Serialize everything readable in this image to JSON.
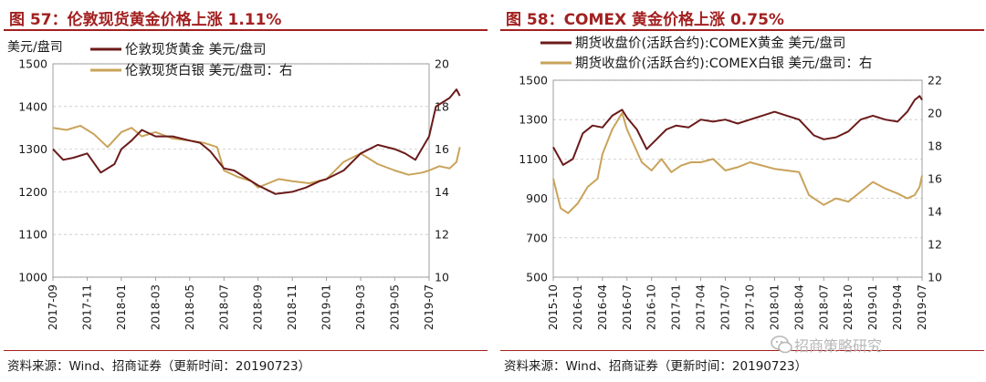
{
  "chart_data": [
    {
      "type": "line",
      "title": "图 57：伦敦现货黄金价格上涨 1.11%",
      "unit_label": "美元/盘司",
      "source": "资料来源：Wind、招商证券（更新时间：20190723）",
      "ylim": [
        1000,
        1500
      ],
      "y_ticks": [
        "1000",
        "1100",
        "1200",
        "1300",
        "1400",
        "1500"
      ],
      "ylim_right": [
        10,
        20
      ],
      "y2_ticks": [
        "10",
        "12",
        "14",
        "16",
        "18",
        "20"
      ],
      "x_ticks": [
        "2017-09",
        "2017-11",
        "2018-01",
        "2018-03",
        "2018-05",
        "2018-07",
        "2018-09",
        "2018-11",
        "2019-01",
        "2019-03",
        "2019-05",
        "2019-07"
      ],
      "grid": true,
      "legend_position": "top",
      "colors": {
        "primary": "#6b1a1a",
        "secondary": "#c9a35a"
      },
      "series": [
        {
          "name": "伦敦现货黄金  美元/盘司",
          "axis": "left",
          "x": [
            0,
            0.3,
            0.6,
            1,
            1.4,
            1.8,
            2,
            2.3,
            2.6,
            3,
            3.5,
            4,
            4.3,
            4.6,
            5,
            5.3,
            5.6,
            6,
            6.5,
            7,
            7.4,
            7.8,
            8,
            8.5,
            9,
            9.5,
            10,
            10.3,
            10.6,
            11,
            11.2,
            11.4,
            11.6,
            11.8,
            11.9
          ],
          "values": [
            1300,
            1275,
            1280,
            1290,
            1245,
            1265,
            1300,
            1320,
            1345,
            1330,
            1330,
            1320,
            1315,
            1295,
            1255,
            1250,
            1235,
            1215,
            1195,
            1200,
            1210,
            1225,
            1230,
            1250,
            1290,
            1310,
            1300,
            1290,
            1275,
            1330,
            1400,
            1410,
            1420,
            1440,
            1425
          ]
        },
        {
          "name": "伦敦现货白银  美元/盘司：右",
          "axis": "right",
          "x": [
            0,
            0.4,
            0.8,
            1.2,
            1.6,
            2,
            2.3,
            2.6,
            3,
            3.5,
            4,
            4.4,
            4.8,
            5,
            5.4,
            5.8,
            6,
            6.3,
            6.6,
            7,
            7.5,
            8,
            8.5,
            9,
            9.5,
            10,
            10.4,
            10.8,
            11,
            11.3,
            11.6,
            11.8,
            11.9
          ],
          "values": [
            17.0,
            16.9,
            17.1,
            16.7,
            16.1,
            16.8,
            17.0,
            16.6,
            16.8,
            16.5,
            16.4,
            16.3,
            16.1,
            15.0,
            14.7,
            14.5,
            14.2,
            14.4,
            14.6,
            14.5,
            14.4,
            14.6,
            15.4,
            15.8,
            15.3,
            15.0,
            14.8,
            14.9,
            15.0,
            15.2,
            15.1,
            15.4,
            16.1
          ]
        }
      ]
    },
    {
      "type": "line",
      "title": "图 58：COMEX 黄金价格上涨 0.75%",
      "source": "资料来源：Wind、招商证券（更新时间：20190723）",
      "ylim": [
        500,
        1500
      ],
      "y_ticks": [
        "500",
        "700",
        "900",
        "1100",
        "1300",
        "1500"
      ],
      "ylim_right": [
        10,
        22
      ],
      "y2_ticks": [
        "10",
        "12",
        "14",
        "16",
        "18",
        "20",
        "22"
      ],
      "x_ticks": [
        "2015-10",
        "2016-01",
        "2016-04",
        "2016-07",
        "2016-10",
        "2017-01",
        "2017-04",
        "2017-07",
        "2017-10",
        "2018-01",
        "2018-04",
        "2018-07",
        "2018-10",
        "2019-01",
        "2019-04",
        "2019-07"
      ],
      "grid": true,
      "legend_position": "top",
      "colors": {
        "primary": "#6b1a1a",
        "secondary": "#c9a35a"
      },
      "series": [
        {
          "name": "期货收盘价(活跃合约):COMEX黄金  美元/盘司",
          "axis": "left",
          "x": [
            0,
            0.4,
            0.8,
            1.2,
            1.6,
            2,
            2.4,
            2.8,
            3,
            3.4,
            3.8,
            4.2,
            4.6,
            5,
            5.5,
            6,
            6.5,
            7,
            7.5,
            8,
            8.5,
            9,
            9.5,
            10,
            10.3,
            10.6,
            11,
            11.5,
            12,
            12.5,
            13,
            13.5,
            14,
            14.4,
            14.7,
            14.9,
            15.0
          ],
          "values": [
            1160,
            1070,
            1100,
            1230,
            1270,
            1260,
            1320,
            1350,
            1310,
            1250,
            1150,
            1200,
            1250,
            1270,
            1260,
            1300,
            1290,
            1300,
            1280,
            1300,
            1320,
            1340,
            1320,
            1300,
            1260,
            1220,
            1200,
            1210,
            1240,
            1300,
            1320,
            1300,
            1290,
            1340,
            1400,
            1420,
            1400
          ]
        },
        {
          "name": "期货收盘价(活跃合约):COMEX白银  美元/盘司：右",
          "axis": "right",
          "x": [
            0,
            0.3,
            0.6,
            1,
            1.4,
            1.8,
            2,
            2.4,
            2.8,
            3,
            3.3,
            3.6,
            4,
            4.4,
            4.8,
            5.2,
            5.6,
            6,
            6.5,
            7,
            7.5,
            8,
            8.5,
            9,
            9.5,
            10,
            10.4,
            10.8,
            11,
            11.5,
            12,
            12.5,
            13,
            13.5,
            14,
            14.4,
            14.7,
            14.9,
            15.0
          ],
          "values": [
            16.0,
            14.2,
            13.9,
            14.5,
            15.5,
            16.0,
            17.5,
            19.0,
            20.0,
            19.0,
            18.0,
            17.0,
            16.5,
            17.2,
            16.4,
            16.8,
            17.0,
            17.0,
            17.2,
            16.5,
            16.7,
            17.0,
            16.8,
            16.6,
            16.5,
            16.4,
            15.0,
            14.6,
            14.4,
            14.8,
            14.6,
            15.2,
            15.8,
            15.4,
            15.1,
            14.8,
            15.0,
            15.5,
            16.2
          ]
        }
      ]
    }
  ],
  "watermark": "招商策略研究"
}
